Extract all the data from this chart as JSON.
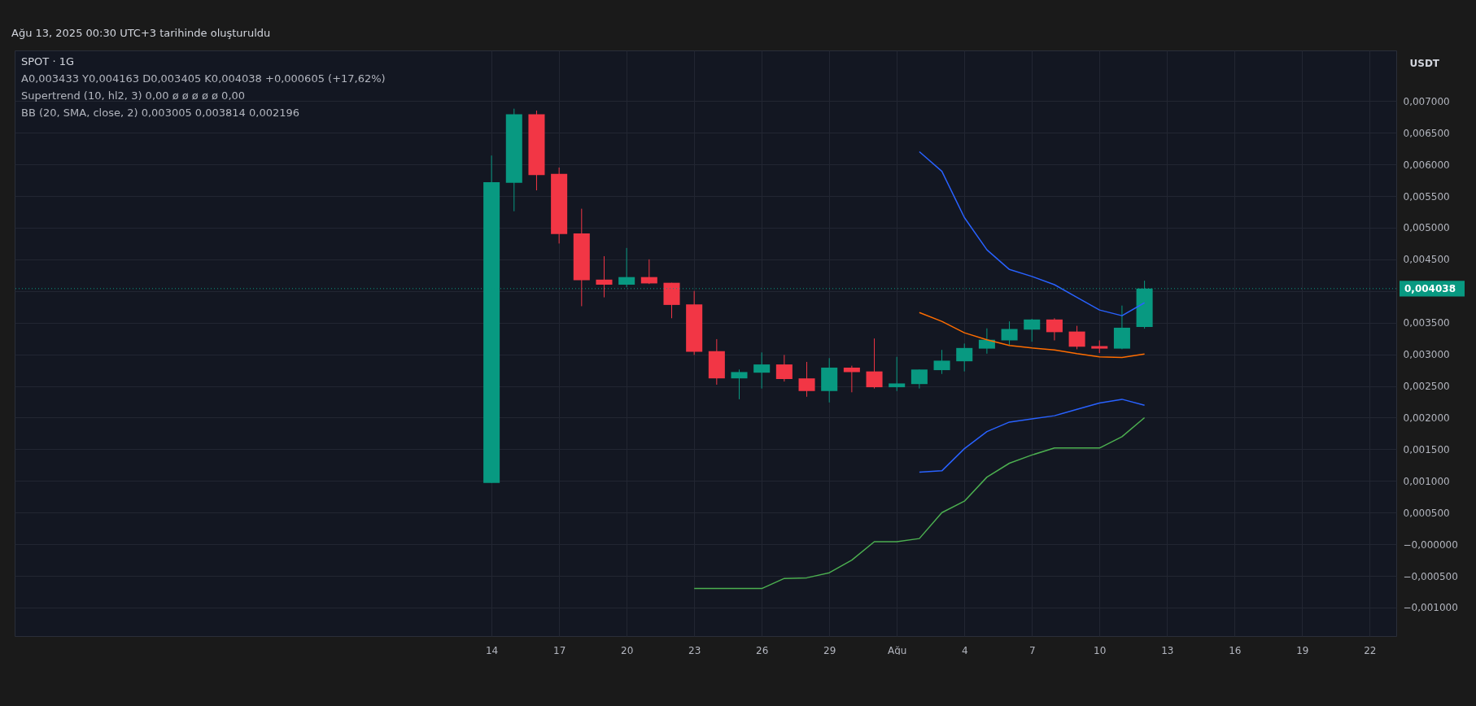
{
  "chart_data": {
    "type": "candlestick",
    "title": "SPOT · 1G",
    "ylabel": "USDT",
    "annotations": [
      "Ağu 13, 2025 00:30 UTC+3 tarihinde oluşturuldu",
      "A0,003433  Y0,004163  D0,003405  K0,004038  +0,000605 (+17,62%)",
      "Supertrend (10, hl2, 3)  0,00  ø  ø  ø  ø  ø  0,00",
      "BB (20, SMA, close, 2)  0,003005  0,003814  0,002196"
    ],
    "x": [
      "2025-07-14",
      "2025-07-15",
      "2025-07-16",
      "2025-07-17",
      "2025-07-18",
      "2025-07-19",
      "2025-07-20",
      "2025-07-21",
      "2025-07-22",
      "2025-07-23",
      "2025-07-24",
      "2025-07-25",
      "2025-07-26",
      "2025-07-27",
      "2025-07-28",
      "2025-07-29",
      "2025-07-30",
      "2025-07-31",
      "2025-08-01",
      "2025-08-02",
      "2025-08-03",
      "2025-08-04",
      "2025-08-05",
      "2025-08-06",
      "2025-08-07",
      "2025-08-08",
      "2025-08-09",
      "2025-08-10",
      "2025-08-11",
      "2025-08-12"
    ],
    "ohlc": [
      [
        0.00097,
        0.00614,
        0.00097,
        0.00572
      ],
      [
        0.00571,
        0.00688,
        0.00526,
        0.00679
      ],
      [
        0.00679,
        0.00685,
        0.00559,
        0.00583
      ],
      [
        0.00585,
        0.00595,
        0.00475,
        0.0049
      ],
      [
        0.00491,
        0.0053,
        0.00376,
        0.00417
      ],
      [
        0.00418,
        0.00455,
        0.0039,
        0.0041
      ],
      [
        0.0041,
        0.00468,
        0.00406,
        0.00422
      ],
      [
        0.00422,
        0.0045,
        0.00411,
        0.00412
      ],
      [
        0.00413,
        0.00413,
        0.00357,
        0.00378
      ],
      [
        0.00379,
        0.004,
        0.00299,
        0.00304
      ],
      [
        0.00305,
        0.00324,
        0.00252,
        0.00262
      ],
      [
        0.00262,
        0.00276,
        0.00229,
        0.00272
      ],
      [
        0.00271,
        0.00303,
        0.00246,
        0.00284
      ],
      [
        0.00284,
        0.00299,
        0.00257,
        0.00261
      ],
      [
        0.00262,
        0.00288,
        0.00233,
        0.00242
      ],
      [
        0.00242,
        0.00294,
        0.00224,
        0.00279
      ],
      [
        0.00279,
        0.00282,
        0.0024,
        0.00272
      ],
      [
        0.00273,
        0.00325,
        0.00246,
        0.00248
      ],
      [
        0.00248,
        0.00296,
        0.00242,
        0.00254
      ],
      [
        0.00253,
        0.00276,
        0.00246,
        0.00276
      ],
      [
        0.00275,
        0.00307,
        0.00269,
        0.0029
      ],
      [
        0.00289,
        0.00317,
        0.00273,
        0.0031
      ],
      [
        0.00309,
        0.00341,
        0.00301,
        0.00323
      ],
      [
        0.00322,
        0.00352,
        0.00315,
        0.0034
      ],
      [
        0.00339,
        0.00356,
        0.0032,
        0.00355
      ],
      [
        0.00355,
        0.00357,
        0.00322,
        0.00335
      ],
      [
        0.00336,
        0.00345,
        0.00308,
        0.00312
      ],
      [
        0.00313,
        0.00322,
        0.00302,
        0.00309
      ],
      [
        0.00309,
        0.00377,
        0.00308,
        0.00342
      ],
      [
        0.003433,
        0.004163,
        0.003405,
        0.004038
      ]
    ],
    "colors": [
      "#089981",
      "#089981",
      "#f23645",
      "#f23645",
      "#f23645",
      "#f23645",
      "#089981",
      "#f23645",
      "#f23645",
      "#f23645",
      "#f23645",
      "#089981",
      "#089981",
      "#f23645",
      "#f23645",
      "#089981",
      "#f23645",
      "#f23645",
      "#089981",
      "#089981",
      "#089981",
      "#089981",
      "#089981",
      "#089981",
      "#089981",
      "#f23645",
      "#f23645",
      "#f23645",
      "#089981",
      "#089981"
    ],
    "series": [
      {
        "type": "line",
        "color": "#4caf50",
        "x": [
          "2025-07-23",
          "2025-07-24",
          "2025-07-25",
          "2025-07-26",
          "2025-07-27",
          "2025-07-28",
          "2025-07-29",
          "2025-07-30",
          "2025-07-31",
          "2025-08-01",
          "2025-08-02",
          "2025-08-03",
          "2025-08-04",
          "2025-08-05",
          "2025-08-06",
          "2025-08-07",
          "2025-08-08",
          "2025-08-09",
          "2025-08-10",
          "2025-08-11",
          "2025-08-12"
        ],
        "values": [
          -0.0007,
          -0.0007,
          -0.0007,
          -0.0007,
          -0.00054,
          -0.00053,
          -0.00045,
          -0.00025,
          4e-05,
          4e-05,
          9e-05,
          0.0005,
          0.00068,
          0.00106,
          0.00128,
          0.00141,
          0.00152,
          0.00152,
          0.00152,
          0.0017,
          0.002
        ]
      },
      {
        "type": "line",
        "color": "#2962ff",
        "x": [
          "2025-08-02",
          "2025-08-03",
          "2025-08-04",
          "2025-08-05",
          "2025-08-06",
          "2025-08-07",
          "2025-08-08",
          "2025-08-09",
          "2025-08-10",
          "2025-08-11",
          "2025-08-12"
        ],
        "values": [
          0.0062,
          0.00589,
          0.00516,
          0.00465,
          0.00434,
          0.00423,
          0.0041,
          0.0039,
          0.0037,
          0.00361,
          0.003814
        ]
      },
      {
        "type": "line",
        "color": "#ff6d00",
        "x": [
          "2025-08-02",
          "2025-08-03",
          "2025-08-04",
          "2025-08-05",
          "2025-08-06",
          "2025-08-07",
          "2025-08-08",
          "2025-08-09",
          "2025-08-10",
          "2025-08-11",
          "2025-08-12"
        ],
        "values": [
          0.00366,
          0.00352,
          0.00334,
          0.00323,
          0.00314,
          0.0031,
          0.00307,
          0.00301,
          0.00296,
          0.00295,
          0.003005
        ]
      },
      {
        "type": "line",
        "color": "#2962ff",
        "x": [
          "2025-08-02",
          "2025-08-03",
          "2025-08-04",
          "2025-08-05",
          "2025-08-06",
          "2025-08-07",
          "2025-08-08",
          "2025-08-09",
          "2025-08-10",
          "2025-08-11",
          "2025-08-12"
        ],
        "values": [
          0.00114,
          0.00116,
          0.00151,
          0.00178,
          0.00193,
          0.00198,
          0.00203,
          0.00213,
          0.00223,
          0.00229,
          0.002196
        ]
      }
    ],
    "ref_lines": [
      {
        "axis": "y",
        "value": 0.004038,
        "label": "0,004038",
        "color": "#089981",
        "line_style": "dotted"
      }
    ],
    "xlim": [
      "2025-06-23",
      "2025-08-23"
    ],
    "xticks": [
      {
        "value": "2025-07-14",
        "label": "14"
      },
      {
        "value": "2025-07-17",
        "label": "17"
      },
      {
        "value": "2025-07-20",
        "label": "20"
      },
      {
        "value": "2025-07-23",
        "label": "23"
      },
      {
        "value": "2025-07-26",
        "label": "26"
      },
      {
        "value": "2025-07-29",
        "label": "29"
      },
      {
        "value": "2025-08-01",
        "label": "Ağu"
      },
      {
        "value": "2025-08-04",
        "label": "4"
      },
      {
        "value": "2025-08-07",
        "label": "7"
      },
      {
        "value": "2025-08-10",
        "label": "10"
      },
      {
        "value": "2025-08-13",
        "label": "13"
      },
      {
        "value": "2025-08-16",
        "label": "16"
      },
      {
        "value": "2025-08-19",
        "label": "19"
      },
      {
        "value": "2025-08-22",
        "label": "22"
      }
    ],
    "ylim": [
      -0.00145,
      0.0078
    ],
    "yticks": [
      {
        "value": -0.001,
        "label": "−0,001000"
      },
      {
        "value": -0.0005,
        "label": "−0,000500"
      },
      {
        "value": 0,
        "label": "−0,000000"
      },
      {
        "value": 0.0005,
        "label": "0,000500"
      },
      {
        "value": 0.001,
        "label": "0,001000"
      },
      {
        "value": 0.0015,
        "label": "0,001500"
      },
      {
        "value": 0.002,
        "label": "0,002000"
      },
      {
        "value": 0.0025,
        "label": "0,002500"
      },
      {
        "value": 0.003,
        "label": "0,003000"
      },
      {
        "value": 0.0035,
        "label": "0,003500"
      },
      {
        "value": 0.004,
        "label": null
      },
      {
        "value": 0.0045,
        "label": "0,004500"
      },
      {
        "value": 0.005,
        "label": "0,005000"
      },
      {
        "value": 0.0055,
        "label": "0,005500"
      },
      {
        "value": 0.006,
        "label": "0,006000"
      },
      {
        "value": 0.0065,
        "label": "0,006500"
      },
      {
        "value": 0.007,
        "label": "0,007000"
      }
    ],
    "grid": true
  }
}
